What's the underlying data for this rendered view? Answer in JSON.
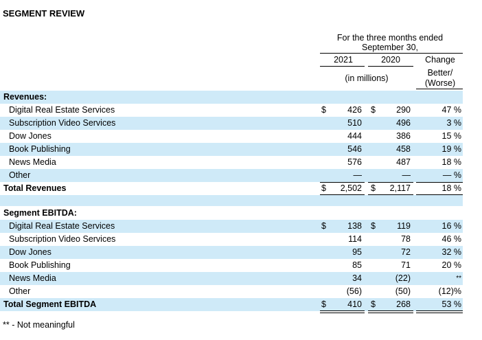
{
  "title": "SEGMENT REVIEW",
  "header": {
    "period_line1": "For the three months ended",
    "period_line2": "September 30,",
    "col_2021": "2021",
    "col_2020": "2020",
    "col_change": "Change",
    "col_better": "Better/",
    "col_worse": "(Worse)",
    "units": "(in millions)"
  },
  "revenues": {
    "heading": "Revenues:",
    "rows": [
      {
        "label": "Digital Real Estate Services",
        "d21": "$",
        "v21": "426",
        "d20": "$",
        "v20": "290",
        "chg": "47 %"
      },
      {
        "label": "Subscription Video Services",
        "d21": "",
        "v21": "510",
        "d20": "",
        "v20": "496",
        "chg": "3 %"
      },
      {
        "label": "Dow Jones",
        "d21": "",
        "v21": "444",
        "d20": "",
        "v20": "386",
        "chg": "15 %"
      },
      {
        "label": "Book Publishing",
        "d21": "",
        "v21": "546",
        "d20": "",
        "v20": "458",
        "chg": "19 %"
      },
      {
        "label": "News Media",
        "d21": "",
        "v21": "576",
        "d20": "",
        "v20": "487",
        "chg": "18 %"
      },
      {
        "label": "Other",
        "d21": "",
        "v21": "—",
        "d20": "",
        "v20": "—",
        "chg": "— %"
      }
    ],
    "total": {
      "label": "Total Revenues",
      "d21": "$",
      "v21": "2,502",
      "d20": "$",
      "v20": "2,117",
      "chg": "18 %"
    }
  },
  "ebitda": {
    "heading": "Segment EBITDA:",
    "rows": [
      {
        "label": "Digital Real Estate Services",
        "d21": "$",
        "v21": "138",
        "d20": "$",
        "v20": "119",
        "chg": "16 %"
      },
      {
        "label": "Subscription Video Services",
        "d21": "",
        "v21": "114",
        "d20": "",
        "v20": "78",
        "chg": "46 %"
      },
      {
        "label": "Dow Jones",
        "d21": "",
        "v21": "95",
        "d20": "",
        "v20": "72",
        "chg": "32 %"
      },
      {
        "label": "Book Publishing",
        "d21": "",
        "v21": "85",
        "d20": "",
        "v20": "71",
        "chg": "20 %"
      },
      {
        "label": "News Media",
        "d21": "",
        "v21": "34",
        "d20": "",
        "v20": "(22)",
        "chg": "**"
      },
      {
        "label": "Other",
        "d21": "",
        "v21": "(56)",
        "d20": "",
        "v20": "(50)",
        "chg": "(12)%"
      }
    ],
    "total": {
      "label": "Total Segment EBITDA",
      "d21": "$",
      "v21": "410",
      "d20": "$",
      "v20": "268",
      "chg": "53 %"
    }
  },
  "footnote": "** - Not meaningful",
  "colors": {
    "shade": "#cfeaf8"
  }
}
